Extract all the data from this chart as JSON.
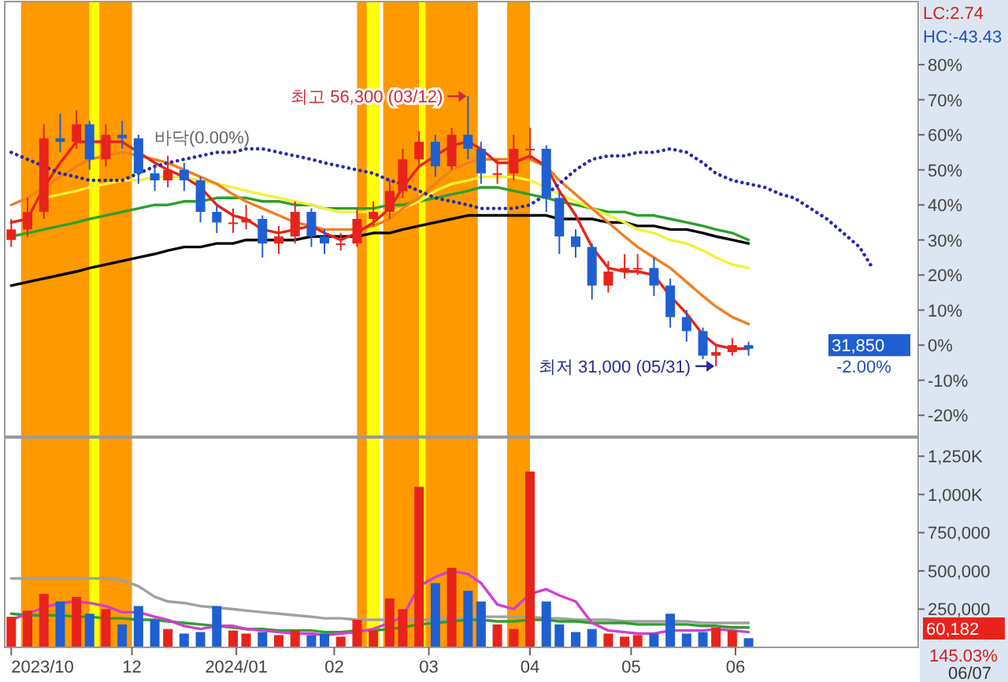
{
  "chart_data": [
    {
      "type": "candlestick",
      "tick_labels": "y",
      "x": [
        "2023-10-25",
        "2023-10-30",
        "2023-11-04",
        "2023-11-09",
        "2023-11-14",
        "2023-11-18",
        "2023-11-23",
        "2023-11-28",
        "2023-12-03",
        "2023-12-08",
        "2023-12-12",
        "2023-12-17",
        "2023-12-22",
        "2023-12-27",
        "2024-01-01",
        "2024-01-05",
        "2024-01-10",
        "2024-01-15",
        "2024-01-20",
        "2024-01-25",
        "2024-01-29",
        "2024-02-03",
        "2024-02-08",
        "2024-02-13",
        "2024-02-18",
        "2024-02-22",
        "2024-02-27",
        "2024-03-03",
        "2024-03-08",
        "2024-03-13",
        "2024-03-17",
        "2024-03-22",
        "2024-03-27",
        "2024-04-01",
        "2024-04-06",
        "2024-04-10",
        "2024-04-15",
        "2024-04-20",
        "2024-04-25",
        "2024-04-30",
        "2024-05-04",
        "2024-05-09",
        "2024-05-14",
        "2024-05-19",
        "2024-05-24",
        "2024-05-28",
        "2024-06-02",
        "2024-06-07"
      ],
      "ohlc": [
        [
          30,
          36,
          28,
          33
        ],
        [
          33,
          42,
          31,
          38
        ],
        [
          38,
          63,
          36,
          59
        ],
        [
          59,
          66,
          55,
          58
        ],
        [
          58,
          67,
          56,
          63
        ],
        [
          63,
          64,
          50,
          53
        ],
        [
          53,
          63,
          51,
          60
        ],
        [
          60,
          64,
          56,
          59
        ],
        [
          59,
          60,
          46,
          49
        ],
        [
          49,
          51,
          44,
          47
        ],
        [
          47,
          54,
          45,
          50
        ],
        [
          50,
          52,
          44,
          47
        ],
        [
          47,
          48,
          35,
          38
        ],
        [
          38,
          40,
          32,
          35
        ],
        [
          35,
          39,
          32,
          35
        ],
        [
          35,
          40,
          33,
          36
        ],
        [
          36,
          37,
          25,
          29
        ],
        [
          29,
          34,
          26,
          31
        ],
        [
          31,
          41,
          29,
          38
        ],
        [
          38,
          39,
          28,
          31
        ],
        [
          31,
          33,
          26,
          29
        ],
        [
          29,
          32,
          27,
          29
        ],
        [
          29,
          39,
          28,
          36
        ],
        [
          36,
          41,
          34,
          38
        ],
        [
          38,
          47,
          36,
          44
        ],
        [
          44,
          56,
          42,
          53
        ],
        [
          53,
          61,
          51,
          58
        ],
        [
          58,
          60,
          48,
          51
        ],
        [
          51,
          62,
          50,
          60
        ],
        [
          60,
          71,
          53,
          56
        ],
        [
          56,
          58,
          46,
          49
        ],
        [
          49,
          53,
          46,
          49
        ],
        [
          49,
          60,
          47,
          56
        ],
        [
          56,
          62,
          53,
          56
        ],
        [
          56,
          57,
          38,
          42
        ],
        [
          42,
          44,
          26,
          31
        ],
        [
          31,
          33,
          25,
          28
        ],
        [
          28,
          29,
          13,
          17
        ],
        [
          17,
          24,
          15,
          21
        ],
        [
          21,
          26,
          19,
          22
        ],
        [
          22,
          26,
          20,
          22
        ],
        [
          22,
          25,
          14,
          17
        ],
        [
          17,
          19,
          5,
          8
        ],
        [
          8,
          10,
          1,
          4
        ],
        [
          4,
          5,
          -4,
          -3
        ],
        [
          -3,
          0,
          -6,
          -2
        ],
        [
          -2,
          2,
          -3,
          0
        ],
        [
          0,
          1,
          -3,
          -1
        ]
      ],
      "colors": [
        "#e8231b",
        "#e8231b",
        "#e8231b",
        "#1f5fd1",
        "#e8231b",
        "#1f5fd1",
        "#e8231b",
        "#1f5fd1",
        "#1f5fd1",
        "#1f5fd1",
        "#e8231b",
        "#1f5fd1",
        "#1f5fd1",
        "#1f5fd1",
        "#e8231b",
        "#e8231b",
        "#1f5fd1",
        "#e8231b",
        "#e8231b",
        "#1f5fd1",
        "#1f5fd1",
        "#e8231b",
        "#e8231b",
        "#e8231b",
        "#e8231b",
        "#e8231b",
        "#e8231b",
        "#1f5fd1",
        "#e8231b",
        "#1f5fd1",
        "#1f5fd1",
        "#e8231b",
        "#e8231b",
        "#e8231b",
        "#1f5fd1",
        "#1f5fd1",
        "#1f5fd1",
        "#1f5fd1",
        "#e8231b",
        "#e8231b",
        "#e8231b",
        "#1f5fd1",
        "#1f5fd1",
        "#1f5fd1",
        "#1f5fd1",
        "#e8231b",
        "#e8231b",
        "#1f5fd1"
      ],
      "series": [
        {
          "type": "line",
          "color": "#000000",
          "values": [
            17,
            18,
            19,
            20,
            21,
            22,
            23,
            24,
            25,
            26,
            27,
            28,
            28,
            29,
            29,
            30,
            30,
            30,
            30,
            31,
            31,
            31,
            31,
            32,
            32,
            33,
            34,
            35,
            36,
            37,
            37,
            37,
            37,
            37,
            37,
            36,
            36,
            36,
            35,
            35,
            34,
            34,
            33,
            33,
            32,
            31,
            30,
            29
          ]
        },
        {
          "type": "line",
          "color": "#2ca02c",
          "values": [
            31,
            32,
            33,
            34,
            35,
            36,
            37,
            38,
            39,
            40,
            40,
            41,
            41,
            42,
            42,
            42,
            41,
            41,
            40,
            40,
            39,
            39,
            39,
            39,
            40,
            40,
            41,
            42,
            43,
            44,
            45,
            45,
            44,
            43,
            42,
            41,
            40,
            39,
            38,
            38,
            37,
            37,
            36,
            35,
            34,
            33,
            32,
            30
          ]
        },
        {
          "type": "line",
          "color": "#f5f03a",
          "values": [
            null,
            null,
            42,
            43,
            44,
            45,
            46,
            47,
            47,
            48,
            48,
            48,
            47,
            46,
            45,
            44,
            43,
            42,
            41,
            40,
            39,
            38,
            38,
            38,
            38,
            39,
            41,
            44,
            46,
            47,
            48,
            48,
            48,
            47,
            45,
            43,
            41,
            39,
            37,
            35,
            33,
            32,
            30,
            29,
            27,
            25,
            23,
            22
          ]
        },
        {
          "type": "line",
          "color": "#f07f22",
          "values": [
            40,
            42,
            45,
            48,
            51,
            53,
            54,
            55,
            54,
            53,
            52,
            50,
            48,
            46,
            43,
            41,
            39,
            37,
            35,
            34,
            33,
            33,
            33,
            34,
            36,
            39,
            42,
            46,
            50,
            52,
            53,
            53,
            53,
            53,
            51,
            47,
            43,
            39,
            35,
            31,
            28,
            25,
            22,
            18,
            14,
            11,
            8,
            6
          ]
        },
        {
          "type": "line",
          "color": "#e8231b",
          "values": [
            35,
            36,
            45,
            52,
            58,
            58,
            58,
            58,
            55,
            52,
            50,
            48,
            45,
            40,
            37,
            36,
            33,
            32,
            33,
            34,
            32,
            30,
            32,
            35,
            39,
            45,
            51,
            54,
            57,
            58,
            56,
            52,
            52,
            54,
            51,
            44,
            37,
            28,
            22,
            21,
            21,
            20,
            14,
            9,
            3,
            0,
            -1,
            -1
          ]
        },
        {
          "type": "line",
          "color": "#2a2aa8",
          "line_style": "dotted",
          "x": [
            "2023-10-25",
            "2023-10-30",
            "2023-11-04",
            "2023-11-09",
            "2023-11-14",
            "2023-11-18",
            "2023-11-23",
            "2023-11-28",
            "2023-12-03",
            "2023-12-08",
            "2023-12-12",
            "2023-12-17",
            "2023-12-22",
            "2023-12-27",
            "2024-01-01",
            "2024-01-05",
            "2024-01-10",
            "2024-01-15",
            "2024-01-20",
            "2024-01-25",
            "2024-01-29",
            "2024-02-03",
            "2024-02-08",
            "2024-02-13",
            "2024-02-18",
            "2024-02-22",
            "2024-02-27",
            "2024-03-03",
            "2024-03-08",
            "2024-03-13",
            "2024-03-17",
            "2024-03-22",
            "2024-03-27",
            "2024-04-01",
            "2024-04-06",
            "2024-04-10",
            "2024-04-15",
            "2024-04-20",
            "2024-04-25",
            "2024-04-30",
            "2024-05-04",
            "2024-05-09",
            "2024-05-14",
            "2024-05-19",
            "2024-05-24",
            "2024-05-28",
            "2024-06-02",
            "2024-06-07",
            "2024-06-12",
            "2024-06-17",
            "2024-06-21",
            "2024-06-26",
            "2024-07-01",
            "2024-07-06",
            "2024-07-11",
            "2024-07-15"
          ],
          "values": [
            55,
            53,
            51,
            49,
            48,
            47,
            47,
            47,
            49,
            51,
            52,
            53,
            54,
            55,
            55,
            56,
            56,
            55,
            54,
            53,
            52,
            51,
            50,
            49,
            47,
            46,
            44,
            42,
            41,
            40,
            39,
            39,
            39,
            40,
            43,
            46,
            50,
            53,
            54,
            54,
            55,
            55,
            56,
            55,
            52,
            49,
            47,
            46,
            45,
            43,
            42,
            39,
            36,
            32,
            28,
            22
          ]
        }
      ],
      "bands": [
        {
          "axis": "x",
          "from": "2023-10-28",
          "to": "2023-11-18",
          "color": "#ff9900"
        },
        {
          "axis": "x",
          "from": "2023-11-18",
          "to": "2023-11-21",
          "color": "#ffff00"
        },
        {
          "axis": "x",
          "from": "2023-11-21",
          "to": "2023-12-01",
          "color": "#ff9900"
        },
        {
          "axis": "x",
          "from": "2024-02-08",
          "to": "2024-02-11",
          "color": "#ff9900"
        },
        {
          "axis": "x",
          "from": "2024-02-11",
          "to": "2024-02-15",
          "color": "#ffff00"
        },
        {
          "axis": "x",
          "from": "2024-02-16",
          "to": "2024-02-27",
          "color": "#ff9900"
        },
        {
          "axis": "x",
          "from": "2024-02-27",
          "to": "2024-02-29",
          "color": "#ffff00"
        },
        {
          "axis": "x",
          "from": "2024-02-29",
          "to": "2024-03-16",
          "color": "#ff9900"
        },
        {
          "axis": "x",
          "from": "2024-03-25",
          "to": "2024-04-01",
          "color": "#ff9900"
        }
      ],
      "annotations": [
        "바닥(0.00%)",
        "LC:2.74",
        "HC:-43.43",
        "31,850",
        "-2.00%",
        {
          "text": "최고 56,300 (03/12)",
          "x": "2024-03-13",
          "y": 71
        },
        {
          "text": "최저 31,000 (05/31)",
          "x": "2024-05-28",
          "y": -6
        }
      ],
      "xlim": [
        "2023-10-23",
        "2024-07-29"
      ],
      "ylim": [
        -26,
        98
      ],
      "yticks": [
        {
          "value": 80,
          "label": "80%"
        },
        {
          "value": 70,
          "label": "70%"
        },
        {
          "value": 60,
          "label": "60%"
        },
        {
          "value": 50,
          "label": "50%"
        },
        {
          "value": 40,
          "label": "40%"
        },
        {
          "value": 30,
          "label": "30%"
        },
        {
          "value": 20,
          "label": "20%"
        },
        {
          "value": 10,
          "label": "10%"
        },
        {
          "value": 0,
          "label": "0%"
        },
        {
          "value": -10,
          "label": "-10%"
        },
        {
          "value": -20,
          "label": "-20%"
        }
      ]
    },
    {
      "type": "bar",
      "x": [
        "2023-10-25",
        "2023-10-30",
        "2023-11-04",
        "2023-11-09",
        "2023-11-14",
        "2023-11-18",
        "2023-11-23",
        "2023-11-28",
        "2023-12-03",
        "2023-12-08",
        "2023-12-12",
        "2023-12-17",
        "2023-12-22",
        "2023-12-27",
        "2024-01-01",
        "2024-01-05",
        "2024-01-10",
        "2024-01-15",
        "2024-01-20",
        "2024-01-25",
        "2024-01-29",
        "2024-02-03",
        "2024-02-08",
        "2024-02-13",
        "2024-02-18",
        "2024-02-22",
        "2024-02-27",
        "2024-03-03",
        "2024-03-08",
        "2024-03-13",
        "2024-03-17",
        "2024-03-22",
        "2024-03-27",
        "2024-04-01",
        "2024-04-06",
        "2024-04-10",
        "2024-04-15",
        "2024-04-20",
        "2024-04-25",
        "2024-04-30",
        "2024-05-04",
        "2024-05-09",
        "2024-05-14",
        "2024-05-19",
        "2024-05-24",
        "2024-05-28",
        "2024-06-02",
        "2024-06-07"
      ],
      "values": [
        200000,
        240000,
        350000,
        300000,
        330000,
        220000,
        250000,
        150000,
        270000,
        180000,
        120000,
        90000,
        100000,
        270000,
        110000,
        90000,
        100000,
        80000,
        110000,
        80000,
        90000,
        70000,
        180000,
        110000,
        320000,
        250000,
        1050000,
        420000,
        520000,
        370000,
        300000,
        150000,
        120000,
        1150000,
        300000,
        150000,
        100000,
        120000,
        90000,
        70000,
        80000,
        90000,
        220000,
        90000,
        100000,
        130000,
        110000,
        60000
      ],
      "colors": [
        "#e8231b",
        "#e8231b",
        "#e8231b",
        "#1f5fd1",
        "#e8231b",
        "#1f5fd1",
        "#e8231b",
        "#1f5fd1",
        "#1f5fd1",
        "#1f5fd1",
        "#e8231b",
        "#1f5fd1",
        "#1f5fd1",
        "#1f5fd1",
        "#e8231b",
        "#e8231b",
        "#1f5fd1",
        "#e8231b",
        "#e8231b",
        "#1f5fd1",
        "#1f5fd1",
        "#e8231b",
        "#e8231b",
        "#e8231b",
        "#e8231b",
        "#e8231b",
        "#e8231b",
        "#1f5fd1",
        "#e8231b",
        "#1f5fd1",
        "#1f5fd1",
        "#e8231b",
        "#e8231b",
        "#e8231b",
        "#1f5fd1",
        "#1f5fd1",
        "#1f5fd1",
        "#1f5fd1",
        "#e8231b",
        "#e8231b",
        "#e8231b",
        "#1f5fd1",
        "#1f5fd1",
        "#1f5fd1",
        "#1f5fd1",
        "#e8231b",
        "#e8231b",
        "#1f5fd1"
      ],
      "series": [
        {
          "type": "line",
          "color": "#a0a0a0",
          "values": [
            450000,
            450000,
            450000,
            450000,
            450000,
            450000,
            450000,
            440000,
            400000,
            330000,
            300000,
            290000,
            270000,
            260000,
            250000,
            240000,
            230000,
            220000,
            210000,
            200000,
            190000,
            190000,
            180000,
            180000,
            180000,
            180000,
            180000,
            180000,
            190000,
            190000,
            200000,
            200000,
            200000,
            200000,
            190000,
            190000,
            180000,
            180000,
            180000,
            170000,
            170000,
            170000,
            170000,
            170000,
            160000,
            160000,
            160000,
            160000
          ]
        },
        {
          "type": "line",
          "color": "#2ca02c",
          "values": [
            220000,
            210000,
            210000,
            210000,
            200000,
            200000,
            190000,
            190000,
            180000,
            180000,
            170000,
            160000,
            150000,
            140000,
            130000,
            120000,
            120000,
            110000,
            110000,
            110000,
            100000,
            100000,
            110000,
            110000,
            120000,
            130000,
            150000,
            160000,
            170000,
            180000,
            180000,
            170000,
            170000,
            180000,
            180000,
            170000,
            170000,
            160000,
            160000,
            160000,
            150000,
            150000,
            150000,
            150000,
            140000,
            140000,
            130000,
            130000
          ]
        },
        {
          "type": "line",
          "color": "#d040d0",
          "values": [
            180000,
            220000,
            260000,
            290000,
            300000,
            290000,
            270000,
            230000,
            230000,
            200000,
            180000,
            140000,
            120000,
            140000,
            140000,
            120000,
            110000,
            100000,
            90000,
            90000,
            80000,
            90000,
            100000,
            120000,
            160000,
            200000,
            400000,
            460000,
            500000,
            480000,
            420000,
            280000,
            250000,
            350000,
            380000,
            340000,
            300000,
            160000,
            110000,
            100000,
            90000,
            90000,
            110000,
            110000,
            110000,
            120000,
            110000,
            100000
          ]
        }
      ],
      "bands": [
        {
          "axis": "x",
          "from": "2023-10-28",
          "to": "2023-11-18",
          "color": "#ff9900"
        },
        {
          "axis": "x",
          "from": "2023-11-18",
          "to": "2023-11-21",
          "color": "#ffff00"
        },
        {
          "axis": "x",
          "from": "2023-11-21",
          "to": "2023-12-01",
          "color": "#ff9900"
        },
        {
          "axis": "x",
          "from": "2024-02-08",
          "to": "2024-02-11",
          "color": "#ff9900"
        },
        {
          "axis": "x",
          "from": "2024-02-11",
          "to": "2024-02-15",
          "color": "#ffff00"
        },
        {
          "axis": "x",
          "from": "2024-02-16",
          "to": "2024-02-27",
          "color": "#ff9900"
        },
        {
          "axis": "x",
          "from": "2024-02-27",
          "to": "2024-02-29",
          "color": "#ffff00"
        },
        {
          "axis": "x",
          "from": "2024-02-29",
          "to": "2024-03-16",
          "color": "#ff9900"
        },
        {
          "axis": "x",
          "from": "2024-03-25",
          "to": "2024-04-01",
          "color": "#ff9900"
        }
      ],
      "annotations": [
        "60,182",
        "145.03%",
        "06/07"
      ],
      "xlim": [
        "2023-10-23",
        "2024-07-29"
      ],
      "ylim": [
        0,
        1370000
      ],
      "xticks": [
        {
          "value": "2023-10-25",
          "label": "2023/10"
        },
        {
          "value": "2023-12-01",
          "label": "12"
        },
        {
          "value": "2024-01-02",
          "label": "2024/01"
        },
        {
          "value": "2024-02-01",
          "label": "02"
        },
        {
          "value": "2024-03-01",
          "label": "03"
        },
        {
          "value": "2024-04-01",
          "label": "04"
        },
        {
          "value": "2024-05-02",
          "label": "05"
        },
        {
          "value": "2024-06-03",
          "label": "06"
        }
      ],
      "yticks": [
        {
          "value": 250000,
          "label": "250,000"
        },
        {
          "value": 500000,
          "label": "500,000"
        },
        {
          "value": 750000,
          "label": "750,000"
        },
        {
          "value": 1000000,
          "label": "1,000K"
        },
        {
          "value": 1250000,
          "label": "1,250K"
        }
      ]
    }
  ]
}
